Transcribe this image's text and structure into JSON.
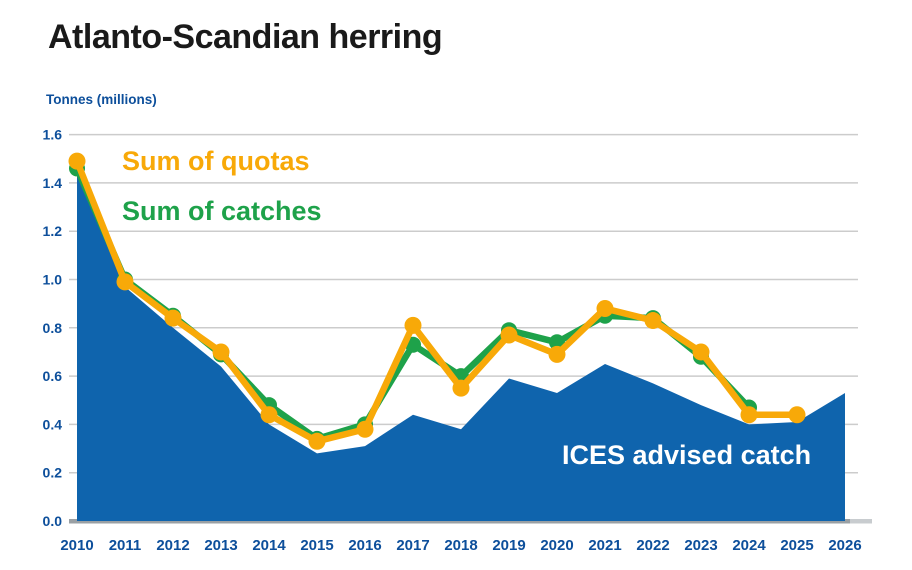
{
  "page": {
    "title": "Atlanto-Scandian herring"
  },
  "chart_data": {
    "type": "area+line",
    "title": "Atlanto-Scandian herring",
    "ylabel": "Tonnes (millions)",
    "xlabel": "",
    "grid": true,
    "ylim": [
      0,
      1.6
    ],
    "y_tick_labels": [
      "0.0",
      "0.2",
      "0.4",
      "0.6",
      "0.8",
      "1.0",
      "1.2",
      "1.4",
      "1.6"
    ],
    "y_tick_values": [
      0,
      0.2,
      0.4,
      0.6,
      0.8,
      1.0,
      1.2,
      1.4,
      1.6
    ],
    "categories": [
      "2010",
      "2011",
      "2012",
      "2013",
      "2014",
      "2015",
      "2016",
      "2017",
      "2018",
      "2019",
      "2020",
      "2021",
      "2022",
      "2023",
      "2024",
      "2025",
      "2026"
    ],
    "legend_position": "top-left-inside",
    "colors": {
      "quotas_orange": "#f8a908",
      "catches_green": "#1ea24a",
      "advised_blue": "#0f64ad",
      "axis_text_blue": "#0d4f9b",
      "gridline_gray": "#cccccc",
      "baseline_gray": "#9aa0a4",
      "title_black": "#1a1a1a",
      "area_label_white": "#ffffff"
    },
    "series": [
      {
        "name": "Sum of quotas",
        "type": "line",
        "color": "#f8a908",
        "values": [
          1.49,
          0.99,
          0.84,
          0.7,
          0.44,
          0.33,
          0.38,
          0.81,
          0.55,
          0.77,
          0.69,
          0.88,
          0.83,
          0.7,
          0.44,
          0.44,
          null
        ]
      },
      {
        "name": "Sum of catches",
        "type": "line",
        "color": "#1ea24a",
        "values": [
          1.46,
          1.0,
          0.85,
          0.69,
          0.48,
          0.34,
          0.4,
          0.73,
          0.6,
          0.79,
          0.74,
          0.85,
          0.84,
          0.68,
          0.47,
          null,
          null
        ]
      },
      {
        "name": "ICES advised catch",
        "type": "area",
        "color": "#0f64ad",
        "values": [
          1.44,
          0.97,
          0.8,
          0.64,
          0.4,
          0.28,
          0.31,
          0.44,
          0.38,
          0.59,
          0.53,
          0.65,
          0.57,
          0.48,
          0.4,
          0.41,
          0.53
        ]
      }
    ]
  }
}
